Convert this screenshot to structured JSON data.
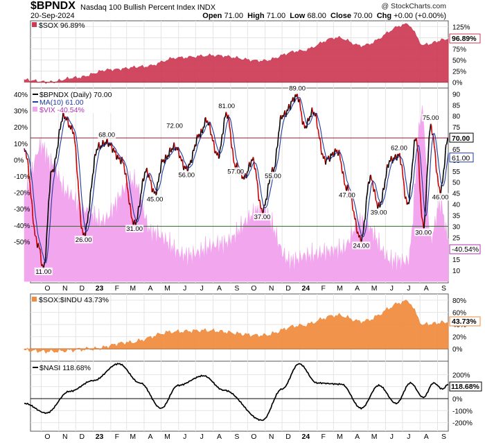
{
  "header": {
    "symbol": "$BPNDX",
    "name": "Nasdaq 100 Bullish Percent Index",
    "exchange": "INDX",
    "date": "20-Sep-2024",
    "open_label": "Open",
    "open": "71.00",
    "high_label": "High",
    "high": "71.00",
    "low_label": "Low",
    "low": "68.00",
    "close_label": "Close",
    "close": "70.00",
    "chg_label": "Chg",
    "chg": "+0.00 (+0.00%)",
    "copyright": "@ StockCharts.com"
  },
  "colors": {
    "sox": "#cd3a52",
    "bpndx": "#000000",
    "ma": "#1f3a9e",
    "bpndx_down": "#cc0000",
    "vix": "#f2a6ee",
    "soxindu": "#f08a3c",
    "nasi": "#000000",
    "line70": "#8a1830",
    "line30": "#2a6a2a"
  },
  "chart_data": [
    {
      "type": "area",
      "panel": "sox",
      "legend": "$SOX 96.89%",
      "series": [
        {
          "name": "$SOX",
          "x": [
            "2022-09-01",
            "2022-10-15",
            "2022-12-01",
            "2023-02-01",
            "2023-04-01",
            "2023-06-01",
            "2023-08-01",
            "2023-10-27",
            "2024-01-01",
            "2024-03-08",
            "2024-04-19",
            "2024-07-10",
            "2024-08-07",
            "2024-09-20"
          ],
          "values": [
            5,
            0,
            10,
            28,
            35,
            55,
            60,
            48,
            70,
            100,
            82,
            130,
            84,
            96.89
          ]
        }
      ],
      "y_ticks": [
        "125%",
        "100%",
        "75%",
        "50%",
        "25%",
        "0%"
      ],
      "ylim": [
        -10,
        135
      ],
      "last_label": "96.89%"
    },
    {
      "type": "line",
      "panel": "bpndx",
      "legend": [
        "$BPNDX (Daily) 70.00",
        "MA(10) 61.00",
        "$VIX -40.54%"
      ],
      "series": [
        {
          "name": "$BPNDX",
          "x": [
            "2022-09-01",
            "2022-09-25",
            "2022-10-05",
            "2022-10-20",
            "2022-11-10",
            "2022-11-25",
            "2022-12-15",
            "2023-01-10",
            "2023-01-25",
            "2023-02-20",
            "2023-03-15",
            "2023-04-05",
            "2023-04-20",
            "2023-05-05",
            "2023-05-25",
            "2023-06-15",
            "2023-07-10",
            "2023-07-20",
            "2023-08-10",
            "2023-08-25",
            "2023-09-10",
            "2023-09-25",
            "2023-10-10",
            "2023-10-27",
            "2023-11-15",
            "2023-12-01",
            "2023-12-28",
            "2024-01-10",
            "2024-01-25",
            "2024-02-15",
            "2024-03-08",
            "2024-03-25",
            "2024-04-19",
            "2024-05-05",
            "2024-05-20",
            "2024-06-10",
            "2024-06-25",
            "2024-07-10",
            "2024-07-25",
            "2024-08-07",
            "2024-08-20",
            "2024-09-06",
            "2024-09-20"
          ],
          "values": [
            65,
            22,
            11,
            55,
            80,
            74,
            26,
            66,
            68,
            60,
            31,
            55,
            45,
            60,
            66,
            56,
            72,
            78,
            62,
            81,
            57,
            52,
            60,
            37,
            55,
            80,
            89,
            75,
            82,
            60,
            64,
            47,
            24,
            52,
            39,
            60,
            62,
            40,
            70,
            30,
            75,
            46,
            70
          ]
        },
        {
          "name": "MA(10)",
          "values_desc": "10-day moving average of $BPNDX",
          "last": 61.0
        }
      ],
      "data_labels": [
        "11.00",
        "26.00",
        "68.00",
        "31.00",
        "45.00",
        "72.00",
        "56.00",
        "81.00",
        "57.00",
        "37.00",
        "55.00",
        "89.00",
        "47.00",
        "24.00",
        "39.00",
        "62.00",
        "30.00",
        "75.00",
        "46.00"
      ],
      "y_ticks_right": [
        "90",
        "85",
        "80",
        "75",
        "70",
        "65",
        "60",
        "55",
        "50",
        "45",
        "40",
        "35",
        "30",
        "25",
        "20",
        "15",
        "10"
      ],
      "y_ticks_left": [
        "40%",
        "30%",
        "20%",
        "10%",
        "0%",
        "-10%",
        "-20%",
        "-30%",
        "-40%",
        "-50%"
      ],
      "reference_lines": [
        70,
        30
      ],
      "last_labels": [
        "70.00",
        "61.00",
        "-40.54%"
      ],
      "vix": {
        "name": "$VIX",
        "x": [
          "2022-09-01",
          "2022-10-01",
          "2022-10-20",
          "2022-11-15",
          "2022-12-15",
          "2023-01-15",
          "2023-03-13",
          "2023-04-15",
          "2023-06-15",
          "2023-08-15",
          "2023-10-27",
          "2023-12-15",
          "2024-01-15",
          "2024-03-15",
          "2024-04-19",
          "2024-06-15",
          "2024-07-10",
          "2024-08-05",
          "2024-08-20",
          "2024-09-06",
          "2024-09-20"
        ],
        "values": [
          24,
          32,
          29,
          24,
          21,
          19,
          26,
          17,
          13,
          15,
          21,
          12,
          13,
          14,
          19,
          12,
          12,
          38,
          16,
          22,
          16
        ]
      }
    },
    {
      "type": "area",
      "panel": "soxindu",
      "legend": "$SOX:$INDU 43.73%",
      "series": [
        {
          "name": "$SOX:$INDU",
          "x": [
            "2022-09-01",
            "2022-10-15",
            "2023-01-01",
            "2023-03-01",
            "2023-05-25",
            "2023-07-15",
            "2023-10-27",
            "2024-01-01",
            "2024-03-08",
            "2024-04-19",
            "2024-07-10",
            "2024-08-07",
            "2024-09-20"
          ],
          "values": [
            -2,
            -4,
            0,
            10,
            28,
            30,
            22,
            38,
            55,
            45,
            78,
            40,
            43.73
          ]
        }
      ],
      "y_ticks": [
        "80%",
        "60%",
        "40%",
        "20%",
        "0%"
      ],
      "last_label": "43.73%"
    },
    {
      "type": "line",
      "panel": "nasi",
      "legend": "$NASI 118.68%",
      "series": [
        {
          "name": "$NASI",
          "x": [
            "2022-09-01",
            "2022-10-10",
            "2022-11-20",
            "2023-01-01",
            "2023-02-15",
            "2023-03-25",
            "2023-05-01",
            "2023-05-31",
            "2023-07-15",
            "2023-08-20",
            "2023-10-27",
            "2023-12-01",
            "2023-12-31",
            "2024-02-01",
            "2024-03-15",
            "2024-04-19",
            "2024-05-20",
            "2024-06-20",
            "2024-07-15",
            "2024-08-07",
            "2024-08-25",
            "2024-09-10",
            "2024-09-20"
          ],
          "values": [
            -40,
            -120,
            60,
            150,
            290,
            130,
            -80,
            110,
            190,
            70,
            -180,
            80,
            290,
            130,
            120,
            -80,
            110,
            -40,
            130,
            10,
            130,
            80,
            118.68
          ]
        }
      ],
      "y_ticks": [
        "200%",
        "100%",
        "0%",
        "-100%",
        "-200%"
      ],
      "last_label": "118.68%"
    }
  ],
  "x_axis": [
    "O",
    "N",
    "D",
    "23",
    "F",
    "M",
    "A",
    "M",
    "J",
    "J",
    "A",
    "S",
    "O",
    "N",
    "D",
    "24",
    "F",
    "M",
    "A",
    "M",
    "J",
    "J",
    "A",
    "S"
  ]
}
